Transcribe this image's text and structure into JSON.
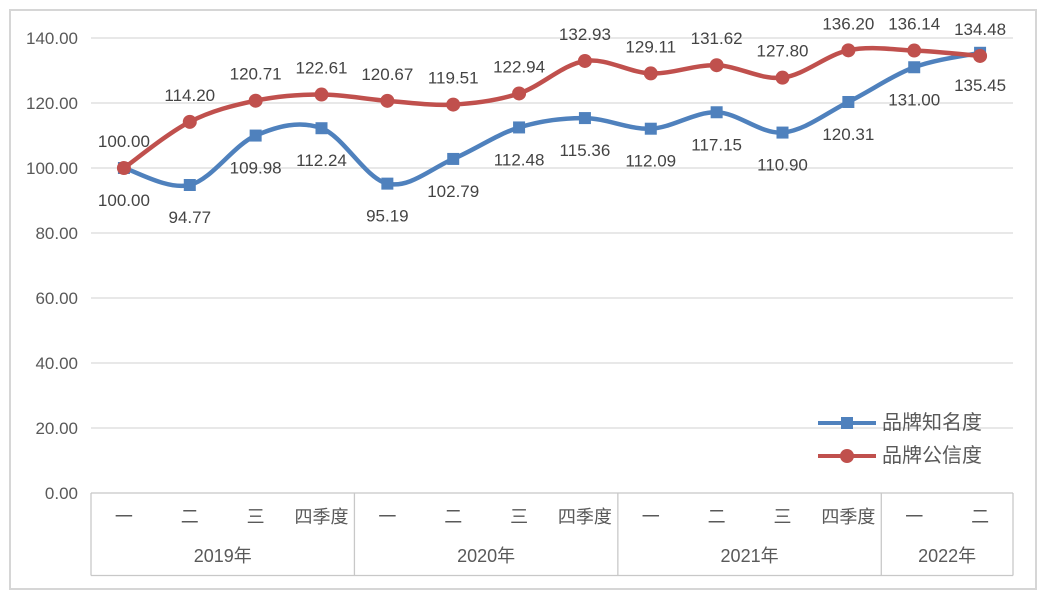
{
  "chart_data": {
    "type": "line",
    "smoothed": true,
    "grid": true,
    "title": "",
    "y_axis": {
      "min": 0,
      "max": 140,
      "step": 20,
      "tick_labels": [
        "0.00",
        "20.00",
        "40.00",
        "60.00",
        "80.00",
        "100.00",
        "120.00",
        "140.00"
      ]
    },
    "x_axis": {
      "quarter_labels": [
        "一",
        "二",
        "三",
        "四季度",
        "一",
        "二",
        "三",
        "四季度",
        "一",
        "二",
        "三",
        "四季度",
        "一",
        "二"
      ],
      "year_groups": [
        {
          "label": "2019年",
          "span": 4
        },
        {
          "label": "2020年",
          "span": 4
        },
        {
          "label": "2021年",
          "span": 4
        },
        {
          "label": "2022年",
          "span": 2
        }
      ]
    },
    "series": [
      {
        "name": "品牌知名度",
        "color": "#4F81BD",
        "marker": "square",
        "label_position": "below",
        "values": [
          100.0,
          94.77,
          109.98,
          112.24,
          95.19,
          102.79,
          112.48,
          115.36,
          112.09,
          117.15,
          110.9,
          120.31,
          131.0,
          135.45
        ]
      },
      {
        "name": "品牌公信度",
        "color": "#C0504D",
        "marker": "circle",
        "label_position": "above",
        "values": [
          100.0,
          114.2,
          120.71,
          122.61,
          120.67,
          119.51,
          122.94,
          132.93,
          129.11,
          131.62,
          127.8,
          136.2,
          136.14,
          134.48
        ]
      }
    ],
    "legend": {
      "position": "right-middle",
      "entries": [
        "品牌知名度",
        "品牌公信度"
      ]
    },
    "colors": {
      "background": "#FFFFFF",
      "border": "#D6D6D6",
      "gridline": "#D9D9D9",
      "axis_line": "#C8C8C8",
      "tick_text": "#595959",
      "data_label_text": "#444444"
    }
  }
}
